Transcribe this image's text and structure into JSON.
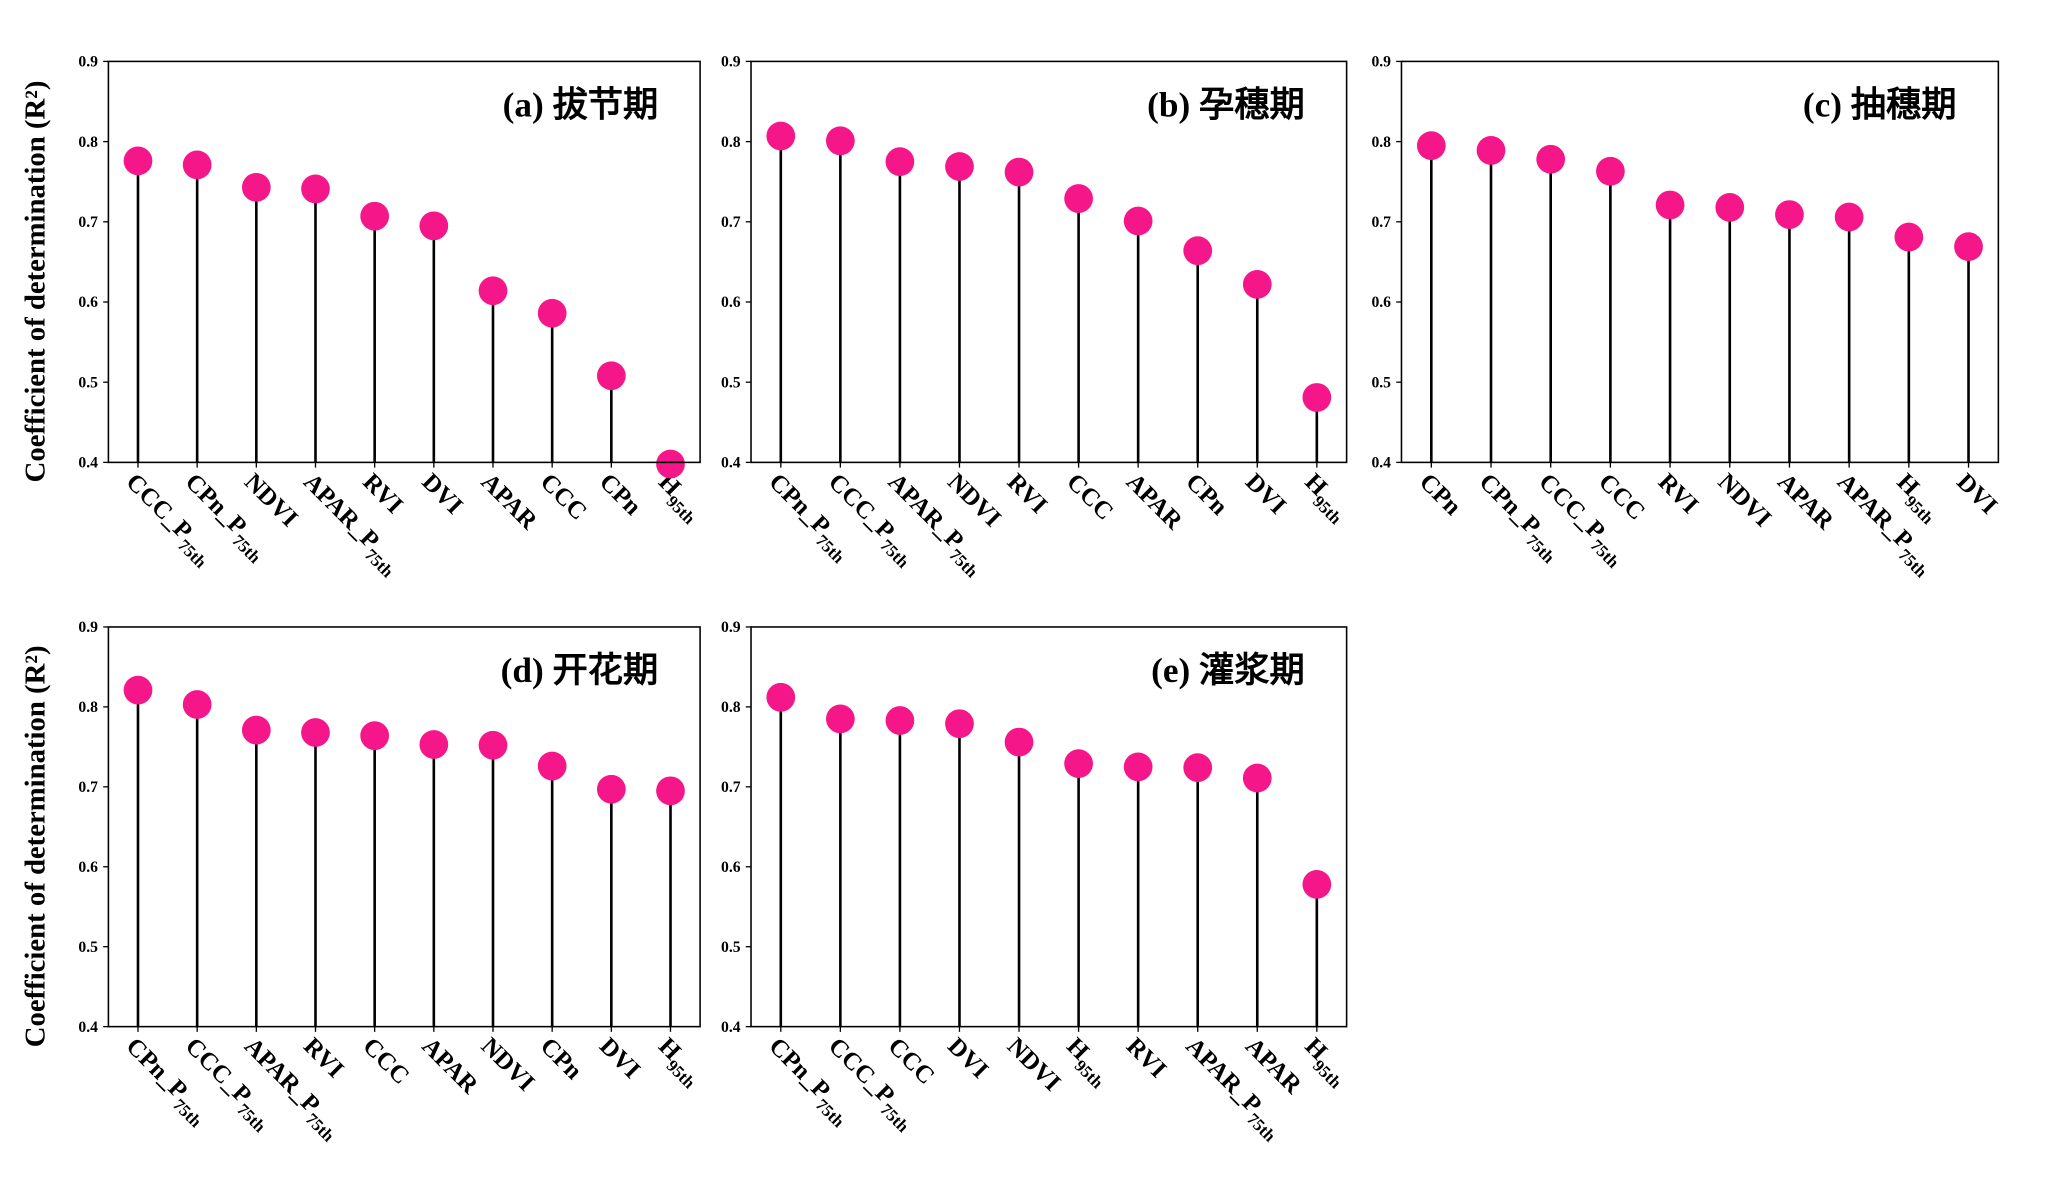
{
  "chart_data": [
    {
      "type": "lollipop",
      "title": "(a) 拔节期",
      "ylabel": "Coefficient of determination (R²)",
      "color": "#f5168a",
      "categories": [
        "CCC_P75th",
        "CPn_P75th",
        "NDVI",
        "APAR_P75th",
        "RVI",
        "DVI",
        "APAR",
        "CCC",
        "CPn",
        "H95th"
      ],
      "values": [
        0.776,
        0.771,
        0.743,
        0.741,
        0.707,
        0.695,
        0.614,
        0.586,
        0.508,
        0.398
      ],
      "ylim": [
        0.4,
        0.9
      ],
      "yticks": [
        0.4,
        0.5,
        0.6,
        0.7,
        0.8,
        0.9
      ]
    },
    {
      "type": "lollipop",
      "title": "(b) 孕穗期",
      "color": "#f5168a",
      "categories": [
        "CPn_P75th",
        "CCC_P75th",
        "APAR_P75th",
        "NDVI",
        "RVI",
        "CCC",
        "APAR",
        "CPn",
        "DVI",
        "H95th"
      ],
      "values": [
        0.807,
        0.801,
        0.775,
        0.769,
        0.762,
        0.729,
        0.701,
        0.664,
        0.622,
        0.481
      ],
      "ylim": [
        0.4,
        0.9
      ],
      "yticks": [
        0.4,
        0.5,
        0.6,
        0.7,
        0.8,
        0.9
      ]
    },
    {
      "type": "lollipop",
      "title": "(c) 抽穗期",
      "color": "#f5168a",
      "categories": [
        "CPn",
        "CPn_P75th",
        "CCC_P75th",
        "CCC",
        "RVI",
        "NDVI",
        "APAR",
        "APAR_P75th",
        "H95th",
        "DVI"
      ],
      "values": [
        0.795,
        0.789,
        0.778,
        0.763,
        0.721,
        0.718,
        0.709,
        0.706,
        0.681,
        0.669
      ],
      "ylim": [
        0.4,
        0.9
      ],
      "yticks": [
        0.4,
        0.5,
        0.6,
        0.7,
        0.8,
        0.9
      ]
    },
    {
      "type": "lollipop",
      "title": "(d) 开花期",
      "ylabel": "Coefficient of determination (R²)",
      "color": "#f5168a",
      "categories": [
        "CPn_P75th",
        "CCC_P75th",
        "APAR_P75th",
        "RVI",
        "CCC",
        "APAR",
        "NDVI",
        "CPn",
        "DVI",
        "H95th"
      ],
      "values": [
        0.821,
        0.803,
        0.771,
        0.768,
        0.764,
        0.753,
        0.752,
        0.726,
        0.697,
        0.695
      ],
      "ylim": [
        0.4,
        0.9
      ],
      "yticks": [
        0.4,
        0.5,
        0.6,
        0.7,
        0.8,
        0.9
      ]
    },
    {
      "type": "lollipop",
      "title": "(e) 灌浆期",
      "color": "#f5168a",
      "categories": [
        "CPn_P75th",
        "CCC_P75th",
        "CCC",
        "DVI",
        "NDVI",
        "H95th",
        "RVI",
        "APAR_P75th",
        "APAR",
        "H95th"
      ],
      "values": [
        0.812,
        0.785,
        0.783,
        0.779,
        0.756,
        0.729,
        0.725,
        0.724,
        0.711,
        0.578
      ],
      "ylim": [
        0.4,
        0.9
      ],
      "yticks": [
        0.4,
        0.5,
        0.6,
        0.7,
        0.8,
        0.9
      ]
    }
  ]
}
